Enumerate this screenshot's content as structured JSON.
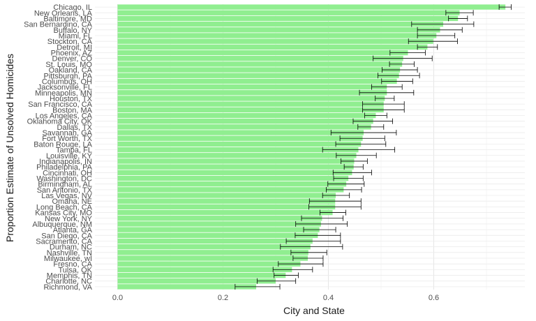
{
  "chart_data": {
    "type": "bar",
    "orientation": "horizontal",
    "xlabel": "City and State",
    "ylabel": "Proportion Estimate of Unsolved Homicides",
    "xlim": [
      0,
      0.75
    ],
    "x_ticks": [
      "0.0",
      "0.2",
      "0.4",
      "0.6"
    ],
    "x_tick_values": [
      0.0,
      0.2,
      0.4,
      0.6
    ],
    "bar_color": "#90ee90",
    "error_bar_color": "#000000",
    "grid": true,
    "categories": [
      "Chicago, IL",
      "New Orleans, LA",
      "Baltimore, MD",
      "San Bernardino, CA",
      "Buffalo, NY",
      "Miami, FL",
      "Stockton, CA",
      "Detroit, MI",
      "Phoenix, AZ",
      "Denver, CO",
      "St. Louis, MO",
      "Oakland, CA",
      "Pittsburgh, PA",
      "Columbus, OH",
      "Jacksonville, FL",
      "Minneapolis, MN",
      "Houston, TX",
      "San Francisco, CA",
      "Boston, MA",
      "Los Angeles, CA",
      "Oklahoma City, OK",
      "Dallas, TX",
      "Savannah, GA",
      "Fort Worth, TX",
      "Baton Rouge, LA",
      "Tampa, FL",
      "Louisville, KY",
      "Indianapolis, IN",
      "Philadelphia, PA",
      "Cincinnati, OH",
      "Washington, DC",
      "Birmingham, AL",
      "San Antonio, TX",
      "Las Vegas, NV",
      "Omaha, NE",
      "Long Beach, CA",
      "Kansas City, MO",
      "New York, NY",
      "Albuquerque, NM",
      "Atlanta, GA",
      "San Diego, CA",
      "Sacramento, CA",
      "Durham, NC",
      "Nashville, TN",
      "Milwaukee, wI",
      "Fresno, CA",
      "Tulsa, OK",
      "Memphis, TN",
      "Charlotte, NC",
      "Richmond, VA"
    ],
    "values": [
      0.736,
      0.649,
      0.646,
      0.618,
      0.612,
      0.605,
      0.599,
      0.588,
      0.551,
      0.542,
      0.54,
      0.536,
      0.534,
      0.53,
      0.511,
      0.511,
      0.507,
      0.505,
      0.505,
      0.49,
      0.485,
      0.481,
      0.467,
      0.465,
      0.462,
      0.457,
      0.453,
      0.449,
      0.448,
      0.445,
      0.438,
      0.434,
      0.429,
      0.414,
      0.413,
      0.413,
      0.408,
      0.388,
      0.386,
      0.383,
      0.38,
      0.37,
      0.366,
      0.362,
      0.361,
      0.347,
      0.331,
      0.319,
      0.3,
      0.263
    ],
    "ci_low": [
      0.724,
      0.623,
      0.628,
      0.558,
      0.569,
      0.569,
      0.552,
      0.569,
      0.517,
      0.485,
      0.516,
      0.502,
      0.494,
      0.501,
      0.482,
      0.459,
      0.489,
      0.465,
      0.465,
      0.469,
      0.447,
      0.456,
      0.405,
      0.422,
      0.414,
      0.389,
      0.415,
      0.424,
      0.43,
      0.409,
      0.41,
      0.399,
      0.396,
      0.389,
      0.364,
      0.363,
      0.384,
      0.349,
      0.338,
      0.353,
      0.337,
      0.32,
      0.309,
      0.329,
      0.333,
      0.305,
      0.295,
      0.297,
      0.265,
      0.223
    ],
    "ci_high": [
      0.747,
      0.675,
      0.664,
      0.676,
      0.654,
      0.64,
      0.645,
      0.607,
      0.584,
      0.597,
      0.563,
      0.569,
      0.573,
      0.56,
      0.54,
      0.562,
      0.525,
      0.544,
      0.544,
      0.511,
      0.522,
      0.505,
      0.529,
      0.507,
      0.509,
      0.526,
      0.491,
      0.474,
      0.466,
      0.482,
      0.466,
      0.468,
      0.463,
      0.44,
      0.462,
      0.462,
      0.433,
      0.428,
      0.436,
      0.414,
      0.423,
      0.423,
      0.427,
      0.397,
      0.39,
      0.39,
      0.37,
      0.343,
      0.338,
      0.308
    ]
  }
}
